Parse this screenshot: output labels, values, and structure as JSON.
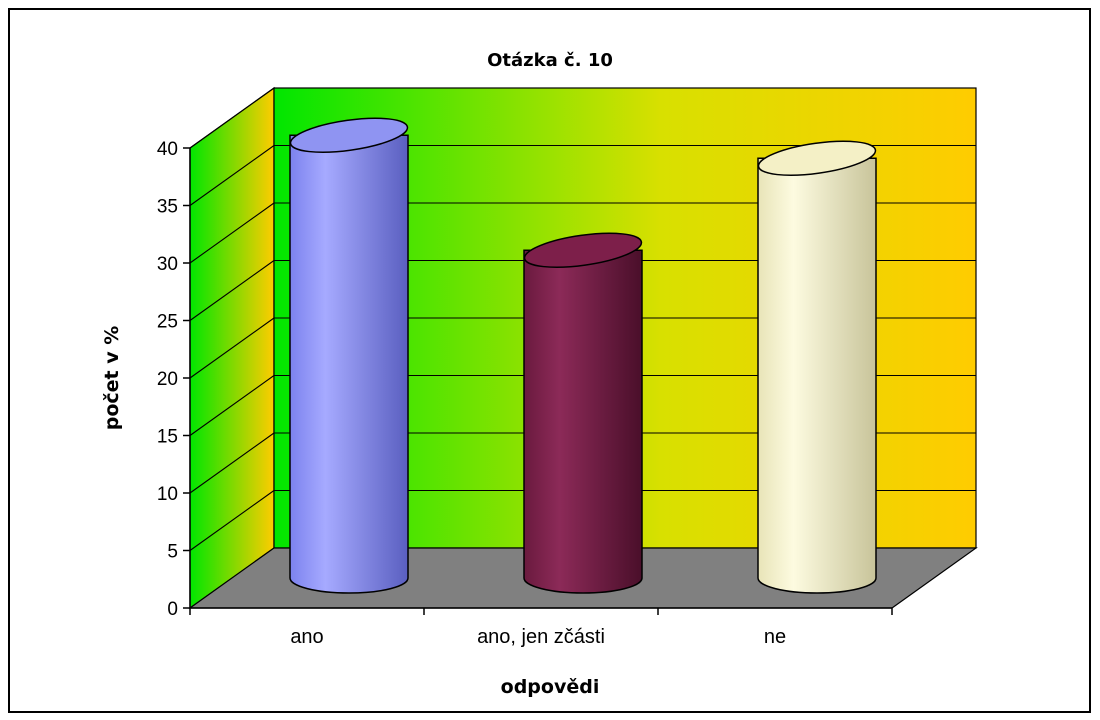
{
  "chart_data": {
    "type": "bar",
    "title": "Otázka č. 10",
    "xlabel": "odpovědi",
    "ylabel": "počet v %",
    "categories": [
      "ano",
      "ano, jen zčásti",
      "ne"
    ],
    "values": [
      38.5,
      28.5,
      36.5
    ],
    "ylim": [
      0,
      40
    ],
    "yticks": [
      "0",
      "5",
      "10",
      "15",
      "20",
      "25",
      "30",
      "35",
      "40"
    ],
    "grid": true,
    "legend": "none",
    "colors": {
      "bars": [
        "#8f94f2",
        "#7d1f4a",
        "#f4f0c6"
      ],
      "back_wall_left": "#00e600",
      "back_wall_right": "#ffcc00",
      "floor": "#808080"
    }
  }
}
